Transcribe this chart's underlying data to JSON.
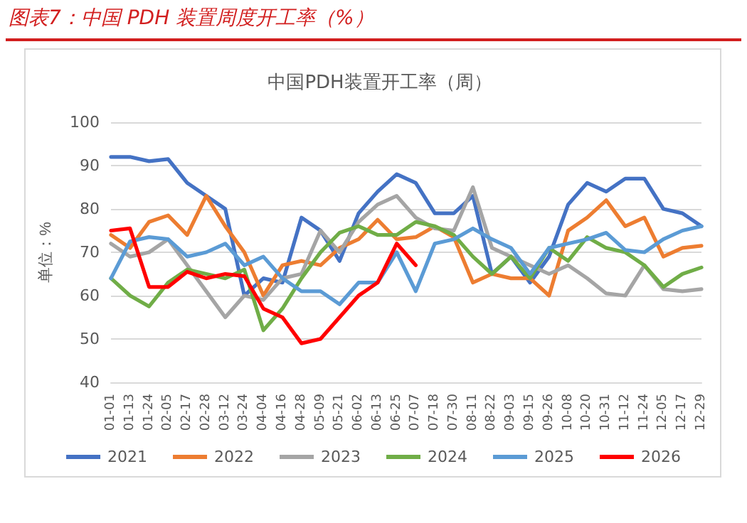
{
  "chart_data": {
    "type": "line",
    "title": "图表7：中国 PDH 装置周度开工率（%）",
    "subtitle": "中国PDH装置开工率（周）",
    "ylabel": "单位：%",
    "categories": [
      "01-01",
      "01-13",
      "01-24",
      "02-05",
      "02-17",
      "02-28",
      "03-12",
      "03-24",
      "04-04",
      "04-16",
      "04-28",
      "05-09",
      "05-21",
      "06-02",
      "06-13",
      "06-25",
      "07-07",
      "07-18",
      "07-30",
      "08-11",
      "08-22",
      "09-03",
      "09-15",
      "09-26",
      "10-08",
      "10-20",
      "10-31",
      "11-12",
      "11-24",
      "12-05",
      "12-17",
      "12-29"
    ],
    "series": [
      {
        "name": "2021",
        "color": "#4472c4",
        "values": [
          92,
          92,
          91,
          91.5,
          86,
          83,
          80,
          60,
          64,
          63,
          78,
          75,
          68,
          79,
          84,
          88,
          86,
          79,
          79,
          83,
          65,
          69,
          63,
          69,
          81,
          86,
          84,
          87,
          87,
          80,
          79,
          76
        ]
      },
      {
        "name": "2022",
        "color": "#ed7d31",
        "values": [
          74,
          71,
          77,
          78.5,
          74,
          83,
          76,
          70,
          60,
          67,
          68,
          67,
          71,
          73,
          77.5,
          73,
          73.5,
          76,
          73.5,
          63,
          65,
          64,
          64,
          60,
          75,
          78,
          82,
          76,
          78,
          69,
          71,
          71.5
        ]
      },
      {
        "name": "2023",
        "color": "#a5a5a5",
        "values": [
          72,
          69,
          70,
          73,
          67,
          61,
          55,
          60,
          59,
          64,
          65,
          75,
          70,
          77,
          81,
          83,
          78,
          75.5,
          75,
          85,
          71,
          69,
          67,
          65,
          67,
          64,
          60.5,
          60,
          67,
          61.5,
          61,
          61.5
        ]
      },
      {
        "name": "2024",
        "color": "#70ad47",
        "values": [
          64,
          60,
          57.5,
          63,
          66,
          65,
          64,
          66,
          52,
          57,
          64,
          70,
          74.5,
          76,
          74,
          74,
          77,
          76,
          74,
          69,
          65,
          69,
          64,
          71,
          68,
          73.5,
          71,
          70,
          67,
          62,
          65,
          66.5
        ]
      },
      {
        "name": "2025",
        "color": "#5b9bd5",
        "values": [
          64,
          72.5,
          73.5,
          73,
          69,
          70,
          72,
          67,
          69,
          64,
          61,
          61,
          58,
          63,
          63,
          70,
          61,
          72,
          73,
          75.5,
          73,
          71,
          65,
          71,
          72,
          73,
          74.5,
          70.5,
          70,
          73,
          75,
          76
        ]
      },
      {
        "name": "2026",
        "color": "#ff0000",
        "values": [
          75,
          75.5,
          62,
          62,
          65.5,
          64,
          65,
          64.5,
          57,
          55,
          49,
          50,
          55,
          60,
          63,
          72,
          67,
          null,
          null,
          null,
          null,
          null,
          null,
          null,
          null,
          null,
          null,
          null,
          null,
          null,
          null,
          null
        ]
      }
    ],
    "ylim": [
      40,
      100
    ],
    "yticks": [
      40,
      50,
      60,
      70,
      80,
      90,
      100
    ],
    "grid": "y",
    "legend": "bottom"
  }
}
